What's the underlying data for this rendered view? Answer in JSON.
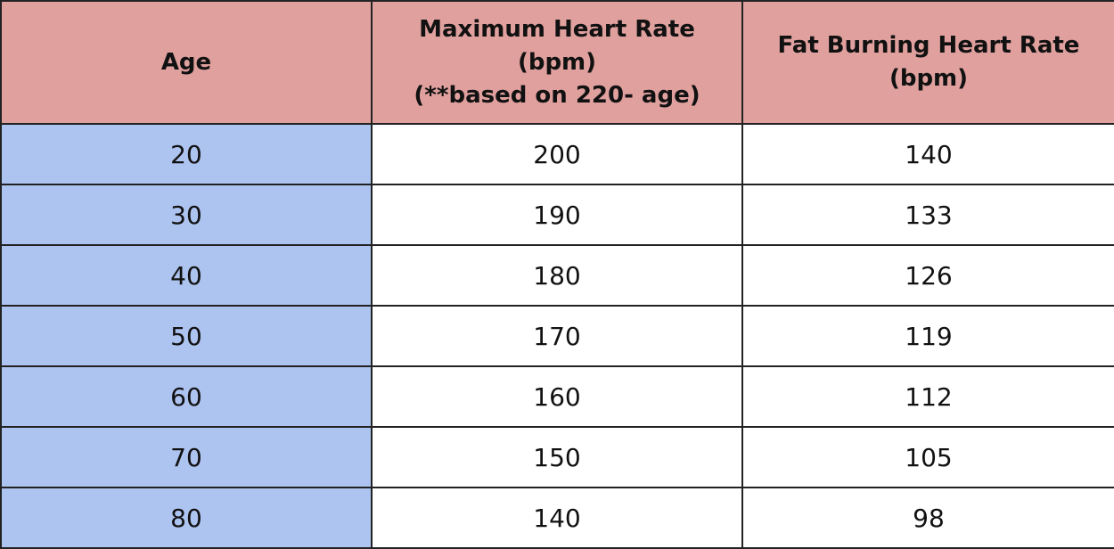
{
  "table": {
    "header": [
      [
        "Age"
      ],
      [
        "Maximum Heart Rate",
        "(bpm)",
        "(**based on 220- age)"
      ],
      [
        "Fat Burning Heart Rate",
        "(bpm)"
      ]
    ],
    "rows": [
      [
        20,
        200,
        140
      ],
      [
        30,
        190,
        133
      ],
      [
        40,
        180,
        126
      ],
      [
        50,
        170,
        119
      ],
      [
        60,
        160,
        112
      ],
      [
        70,
        150,
        105
      ],
      [
        80,
        140,
        98
      ]
    ]
  }
}
